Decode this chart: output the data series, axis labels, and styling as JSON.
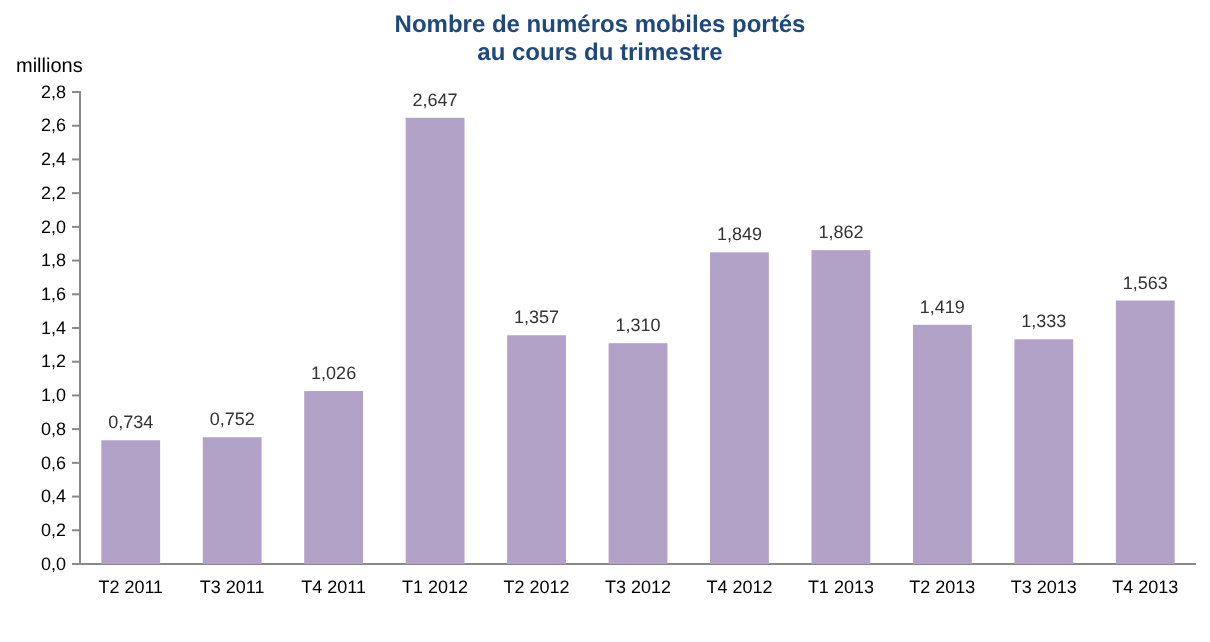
{
  "chart_data": {
    "type": "bar",
    "title": "Nombre de numéros mobiles portés\nau cours du trimestre",
    "ylabel": "millions",
    "categories": [
      "T2 2011",
      "T3 2011",
      "T4 2011",
      "T1 2012",
      "T2 2012",
      "T3 2012",
      "T4 2012",
      "T1 2013",
      "T2 2013",
      "T3 2013",
      "T4 2013"
    ],
    "values": [
      0.734,
      0.752,
      1.026,
      2.647,
      1.357,
      1.31,
      1.849,
      1.862,
      1.419,
      1.333,
      1.563
    ],
    "value_labels": [
      "0,734",
      "0,752",
      "1,026",
      "2,647",
      "1,357",
      "1,310",
      "1,849",
      "1,862",
      "1,419",
      "1,333",
      "1,563"
    ],
    "color": "#b3a2c7",
    "ylim": [
      0,
      2.8
    ],
    "yticks": [
      {
        "value": 0,
        "label": "0,0"
      },
      {
        "value": 0.2,
        "label": "0,2"
      },
      {
        "value": 0.4,
        "label": "0,4"
      },
      {
        "value": 0.6,
        "label": "0,6"
      },
      {
        "value": 0.8,
        "label": "0,8"
      },
      {
        "value": 1,
        "label": "1,0"
      },
      {
        "value": 1.2,
        "label": "1,2"
      },
      {
        "value": 1.4,
        "label": "1,4"
      },
      {
        "value": 1.6,
        "label": "1,6"
      },
      {
        "value": 1.8,
        "label": "1,8"
      },
      {
        "value": 2,
        "label": "2,0"
      },
      {
        "value": 2.2,
        "label": "2,2"
      },
      {
        "value": 2.4,
        "label": "2,4"
      },
      {
        "value": 2.6,
        "label": "2,6"
      },
      {
        "value": 2.8,
        "label": "2,8"
      }
    ],
    "grid": false
  }
}
